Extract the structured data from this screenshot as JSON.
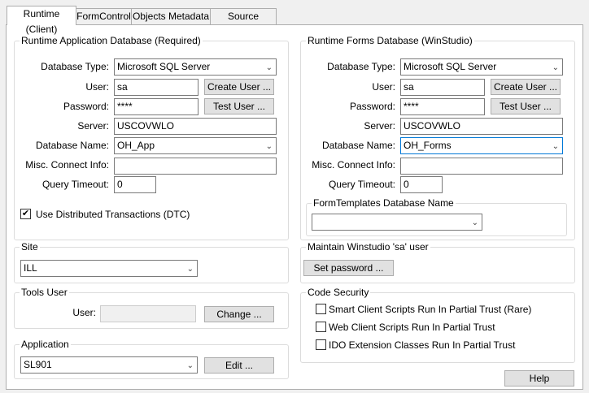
{
  "tabs": [
    "Runtime (Client)",
    "FormControl",
    "Objects Metadata",
    "Source Control"
  ],
  "app_db": {
    "title": "Runtime Application Database (Required)",
    "db_type_label": "Database Type:",
    "db_type": "Microsoft SQL Server",
    "user_label": "User:",
    "user": "sa",
    "password_label": "Password:",
    "password": "****",
    "server_label": "Server:",
    "server": "USCOVWLO",
    "db_name_label": "Database Name:",
    "db_name": "OH_App",
    "misc_label": "Misc. Connect Info:",
    "misc": "",
    "timeout_label": "Query Timeout:",
    "timeout": "0",
    "create_user": "Create User ...",
    "test_user": "Test User ...",
    "dtc_label": "Use Distributed Transactions (DTC)",
    "dtc_checked": true
  },
  "forms_db": {
    "title": "Runtime Forms Database (WinStudio)",
    "db_type_label": "Database Type:",
    "db_type": "Microsoft SQL Server",
    "user_label": "User:",
    "user": "sa",
    "password_label": "Password:",
    "password": "****",
    "server_label": "Server:",
    "server": "USCOVWLO",
    "db_name_label": "Database Name:",
    "db_name": "OH_Forms",
    "misc_label": "Misc. Connect Info:",
    "misc": "",
    "timeout_label": "Query Timeout:",
    "timeout": "0",
    "create_user": "Create User ...",
    "test_user": "Test User ...",
    "templates_title": "FormTemplates Database Name",
    "templates_value": ""
  },
  "site": {
    "title": "Site",
    "value": "ILL"
  },
  "maintain": {
    "title": "Maintain Winstudio 'sa' user",
    "set_password": "Set password ..."
  },
  "tools_user": {
    "title": "Tools User",
    "user_label": "User:",
    "user": "",
    "change": "Change ..."
  },
  "code_security": {
    "title": "Code Security",
    "items": [
      {
        "label": "Smart Client Scripts Run In Partial Trust (Rare)",
        "checked": false
      },
      {
        "label": "Web Client Scripts Run In Partial Trust",
        "checked": false
      },
      {
        "label": "IDO Extension Classes Run In Partial Trust",
        "checked": false
      }
    ]
  },
  "application": {
    "title": "Application",
    "value": "SL901",
    "edit": "Edit ..."
  },
  "help": "Help"
}
